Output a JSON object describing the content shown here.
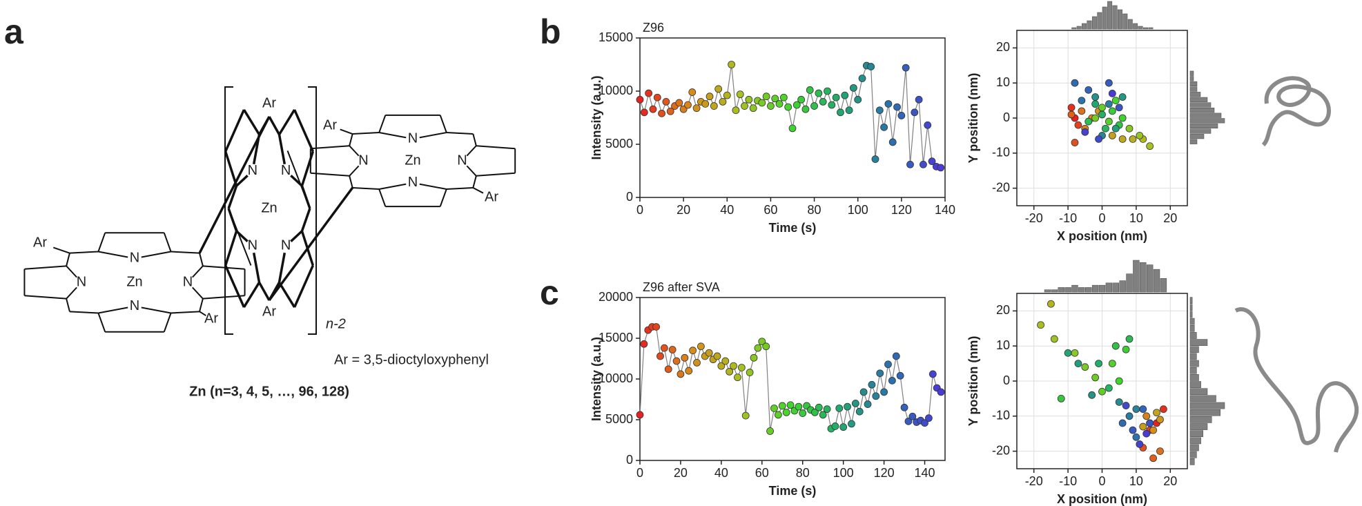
{
  "panels": [
    "a",
    "b",
    "c"
  ],
  "structure": {
    "aryl": "Ar",
    "nitrogen": "N",
    "zinc": "Zn",
    "repeat": "n-2",
    "aryl_def": "Ar = 3,5-dioctyloxyphenyl",
    "name": "Zn (n=3, 4, 5,  …, 96, 128)"
  },
  "chart_data": [
    {
      "type": "line",
      "title": "Z96",
      "x_label": "Time (s)",
      "y_label": "Intensity (a.u.)",
      "xlim": [
        0,
        140
      ],
      "xticks": [
        0,
        20,
        40,
        60,
        80,
        100,
        120,
        140
      ],
      "ylim": [
        0,
        15000
      ],
      "yticks": [
        0,
        5000,
        10000,
        15000
      ],
      "line_color": "#808080",
      "colors": [
        "#e82020",
        "#d98a1a",
        "#a8c020",
        "#3fd62a",
        "#1fa870",
        "#2b70b0",
        "#4a3ad8"
      ],
      "x": [
        0,
        2,
        4,
        6,
        8,
        10,
        12,
        14,
        16,
        18,
        20,
        22,
        24,
        26,
        28,
        30,
        32,
        34,
        36,
        38,
        40,
        42,
        44,
        46,
        48,
        50,
        52,
        54,
        56,
        58,
        60,
        62,
        64,
        66,
        68,
        70,
        72,
        74,
        76,
        78,
        80,
        82,
        84,
        86,
        88,
        90,
        92,
        94,
        96,
        98,
        100,
        102,
        104,
        106,
        108,
        110,
        112,
        114,
        116,
        118,
        120,
        122,
        124,
        126,
        128,
        130,
        132,
        134,
        136,
        138
      ],
      "values": [
        9200,
        8000,
        9800,
        8300,
        9400,
        7900,
        9000,
        8100,
        8600,
        8900,
        8300,
        8700,
        9900,
        8400,
        9000,
        8800,
        9500,
        8600,
        10200,
        9000,
        9600,
        12500,
        8200,
        9700,
        8600,
        9200,
        8400,
        9100,
        8900,
        9500,
        8600,
        9300,
        8800,
        9400,
        8500,
        6500,
        8700,
        9200,
        8300,
        10100,
        8600,
        9800,
        9000,
        10000,
        8700,
        9400,
        8000,
        9600,
        8200,
        10300,
        9200,
        11200,
        12400,
        12300,
        3600,
        8200,
        6600,
        8800,
        5200,
        8500,
        7700,
        12200,
        3100,
        8000,
        9200,
        3100,
        6800,
        3400,
        2900,
        2800
      ]
    },
    {
      "type": "scatter",
      "x_label": "X position (nm)",
      "y_label": "Y position (nm)",
      "xlim": [
        -25,
        25
      ],
      "xticks": [
        -20,
        -10,
        0,
        10,
        20
      ],
      "ylim": [
        -25,
        25
      ],
      "yticks": [
        -20,
        -10,
        0,
        10,
        20
      ],
      "grid": true,
      "hist_color": "#808080",
      "colors": [
        "#e82020",
        "#d98a1a",
        "#a8c020",
        "#3fd62a",
        "#1fa870",
        "#2b70b0",
        "#4a3ad8"
      ],
      "x": [
        -8,
        -9,
        -7,
        -8,
        -9,
        -6,
        -5,
        -3,
        -1,
        3,
        6,
        9,
        12,
        14,
        11,
        8,
        -2,
        0,
        2,
        4,
        6,
        3,
        5,
        -4,
        1,
        0,
        -2,
        4,
        6,
        -2,
        0,
        2,
        -6,
        -8,
        -4,
        2,
        5,
        -1,
        -5,
        3
      ],
      "values": [
        0,
        3,
        -2,
        -7,
        1,
        2,
        -3,
        0,
        2,
        -5,
        -6,
        -6,
        -6,
        -8,
        -5,
        -3,
        0,
        3,
        -1,
        5,
        0,
        2,
        -2,
        -1,
        -3,
        1,
        4,
        -3,
        6,
        6,
        -5,
        4,
        5,
        10,
        8,
        10,
        3,
        -6,
        -4,
        7
      ],
      "x_hist": {
        "bins": [
          -9,
          -7.5,
          -6,
          -4.5,
          -3,
          -1.5,
          0,
          1.5,
          3,
          4.5,
          6,
          7.5,
          9,
          10.5,
          12,
          13.5,
          15
        ],
        "counts": [
          1,
          2,
          4,
          6,
          9,
          12,
          16,
          20,
          17,
          14,
          11,
          7,
          4,
          2,
          1,
          1
        ]
      },
      "y_hist": {
        "bins": [
          -7.5,
          -6,
          -4.5,
          -3,
          -1.5,
          0,
          1.5,
          3,
          4.5,
          6,
          7.5,
          9,
          10.5,
          12,
          13.5
        ],
        "counts": [
          2,
          4,
          6,
          8,
          10,
          9,
          7,
          6,
          5,
          3,
          2,
          2,
          1,
          1
        ]
      }
    },
    {
      "type": "line",
      "title": "Z96 after SVA",
      "x_label": "Time (s)",
      "y_label": "Intensity (a.u.)",
      "xlim": [
        0,
        150
      ],
      "xticks": [
        0,
        20,
        40,
        60,
        80,
        100,
        120,
        140
      ],
      "ylim": [
        0,
        20000
      ],
      "yticks": [
        0,
        5000,
        10000,
        15000,
        20000
      ],
      "line_color": "#808080",
      "colors": [
        "#e82020",
        "#d98a1a",
        "#a8c020",
        "#3fd62a",
        "#1fa870",
        "#2b70b0",
        "#4a3ad8"
      ],
      "x": [
        0,
        2,
        4,
        6,
        8,
        10,
        12,
        14,
        16,
        18,
        20,
        22,
        24,
        26,
        28,
        30,
        32,
        34,
        36,
        38,
        40,
        42,
        44,
        46,
        48,
        50,
        52,
        54,
        56,
        58,
        60,
        62,
        64,
        66,
        68,
        70,
        72,
        74,
        76,
        78,
        80,
        82,
        84,
        86,
        88,
        90,
        92,
        94,
        96,
        98,
        100,
        102,
        104,
        106,
        108,
        110,
        112,
        114,
        116,
        118,
        120,
        122,
        124,
        126,
        128,
        130,
        132,
        134,
        136,
        138,
        140,
        142,
        144,
        146,
        148
      ],
      "values": [
        5600,
        14300,
        16000,
        16400,
        16400,
        12800,
        13800,
        11200,
        13600,
        12200,
        10600,
        12600,
        11000,
        13500,
        12000,
        14000,
        12800,
        13200,
        12400,
        12800,
        11600,
        12200,
        10900,
        11600,
        10200,
        11400,
        5500,
        10800,
        12600,
        13800,
        14600,
        14000,
        3600,
        6400,
        5600,
        6700,
        5900,
        6800,
        6100,
        6600,
        5800,
        6700,
        6200,
        5900,
        6500,
        5600,
        6300,
        3900,
        4200,
        6400,
        4100,
        6600,
        4500,
        7000,
        6000,
        8400,
        6900,
        9300,
        7900,
        10700,
        8400,
        11800,
        9800,
        12800,
        10400,
        6500,
        4800,
        5400,
        4700,
        4900,
        4600,
        5200,
        10600,
        8900,
        8400
      ]
    },
    {
      "type": "scatter",
      "x_label": "X position (nm)",
      "y_label": "Y position (nm)",
      "xlim": [
        -25,
        25
      ],
      "xticks": [
        -20,
        -10,
        0,
        10,
        20
      ],
      "ylim": [
        -25,
        25
      ],
      "yticks": [
        -20,
        -10,
        0,
        10,
        20
      ],
      "grid": true,
      "hist_color": "#808080",
      "colors": [
        "#e82020",
        "#d98a1a",
        "#a8c020",
        "#3fd62a",
        "#1fa870",
        "#2b70b0",
        "#4a3ad8"
      ],
      "x": [
        16,
        18,
        14,
        12,
        15,
        17,
        13,
        15,
        17,
        12,
        16,
        14,
        -15,
        -18,
        -14,
        -8,
        -5,
        -2,
        0,
        3,
        5,
        7,
        -12,
        4,
        8,
        2,
        -1,
        -10,
        -7,
        -3,
        5,
        10,
        8,
        10,
        6,
        12,
        9,
        14,
        7,
        11,
        13
      ],
      "values": [
        -12,
        -8,
        -14,
        -19,
        -22,
        -20,
        -10,
        -14,
        -11,
        -13,
        -9,
        -12,
        22,
        16,
        12,
        8,
        4,
        1,
        -3,
        5,
        0,
        9,
        -5,
        10,
        12,
        -2,
        5,
        8,
        5,
        -4,
        -6,
        -8,
        -10,
        -16,
        -12,
        -8,
        -14,
        -12,
        -7,
        -18,
        -15
      ],
      "x_hist": {
        "bins": [
          -17,
          -15,
          -13,
          -11,
          -9,
          -7,
          -5,
          -3,
          -1,
          1,
          3,
          5,
          7,
          9,
          11,
          13,
          15,
          17,
          19
        ],
        "counts": [
          1,
          1,
          2,
          2,
          3,
          2,
          2,
          3,
          3,
          4,
          4,
          5,
          8,
          14,
          13,
          12,
          10,
          6
        ]
      },
      "y_hist": {
        "bins": [
          -24,
          -22,
          -20,
          -18,
          -16,
          -14,
          -12,
          -10,
          -8,
          -6,
          -4,
          -2,
          0,
          2,
          4,
          6,
          8,
          10,
          12,
          14,
          16,
          18,
          20,
          22,
          24
        ],
        "counts": [
          2,
          3,
          4,
          5,
          6,
          8,
          10,
          14,
          16,
          12,
          8,
          5,
          4,
          3,
          4,
          3,
          4,
          8,
          3,
          2,
          2,
          1,
          1,
          1
        ]
      }
    }
  ]
}
